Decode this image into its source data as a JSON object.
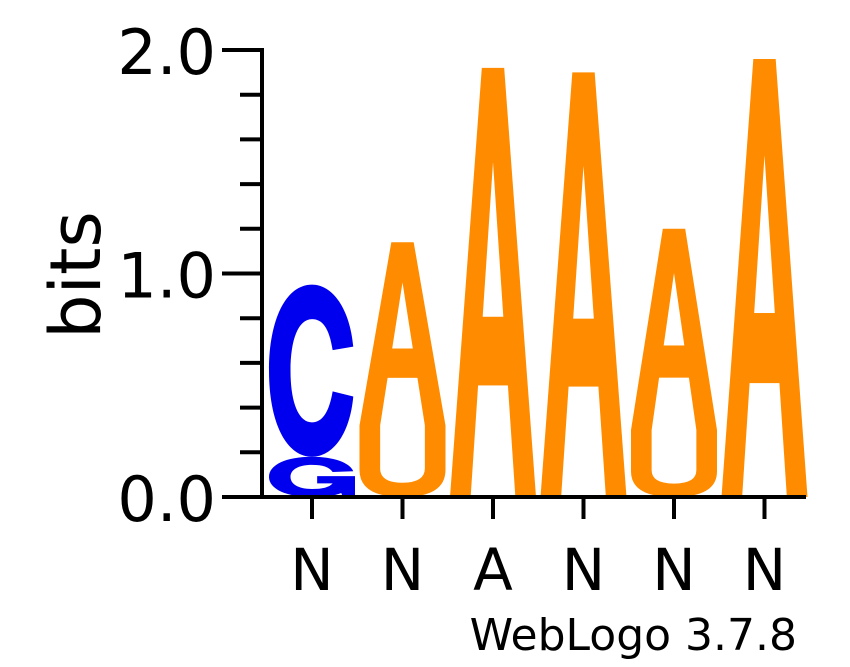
{
  "chart_data": {
    "type": "sequence-logo",
    "ylabel": "bits",
    "ylim": [
      0,
      2
    ],
    "y_ticks": [
      {
        "value": 0,
        "label": "0.0"
      },
      {
        "value": 1,
        "label": "1.0"
      },
      {
        "value": 2,
        "label": "2.0"
      }
    ],
    "positions": [
      {
        "consensus": "N",
        "letters": [
          {
            "char": "G",
            "height": 0.18
          },
          {
            "char": "C",
            "height": 0.77
          }
        ]
      },
      {
        "consensus": "N",
        "letters": [
          {
            "char": "U",
            "height": 0.32
          },
          {
            "char": "A",
            "height": 0.82
          }
        ]
      },
      {
        "consensus": "A",
        "letters": [
          {
            "char": "A",
            "height": 1.92
          }
        ]
      },
      {
        "consensus": "N",
        "letters": [
          {
            "char": "A",
            "height": 1.9
          }
        ]
      },
      {
        "consensus": "N",
        "letters": [
          {
            "char": "U",
            "height": 0.3
          },
          {
            "char": "A",
            "height": 0.9
          }
        ]
      },
      {
        "consensus": "N",
        "letters": [
          {
            "char": "A",
            "height": 1.96
          }
        ]
      }
    ],
    "colors": {
      "A": "#ff8c00",
      "U": "#ff8c00",
      "C": "#0000ee",
      "G": "#0000ee"
    },
    "credit": "WebLogo 3.7.8"
  }
}
